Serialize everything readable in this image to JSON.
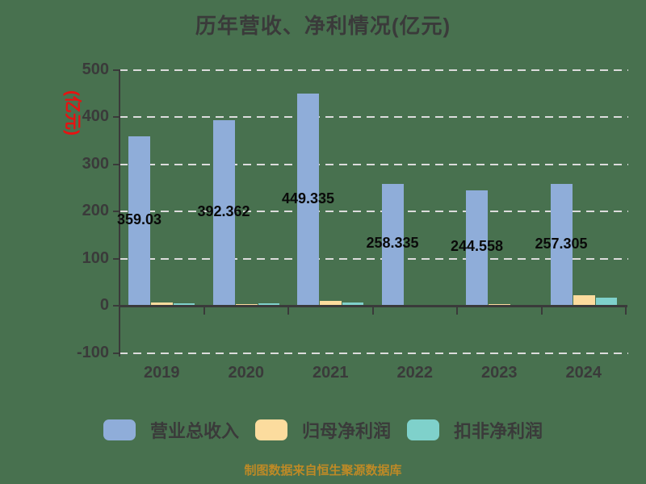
{
  "title": "历年营收、净利情况(亿元)",
  "y_axis_title": "(亿元)",
  "footer": "制图数据来自恒生聚源数据库",
  "colors": {
    "background": "#48714F",
    "axis": "#3A3A3A",
    "gridline": "#DCDCDC",
    "tick_text": "#3A3A3A",
    "value_label_text": "#0A0A0A",
    "y_title_red": "#E81111",
    "footer_gold": "#BE8A26",
    "bar_revenue": "#8FADD9",
    "bar_net_profit": "#FCDC9E",
    "bar_non_gaap_profit": "#7FD1CB"
  },
  "chart_data": {
    "type": "bar",
    "title": "历年营收、净利情况(亿元)",
    "ylabel": "(亿元)",
    "categories": [
      "2019",
      "2020",
      "2021",
      "2022",
      "2023",
      "2024"
    ],
    "series": [
      {
        "name": "营业总收入",
        "color": "#8FADD9",
        "values": [
          359.03,
          392.362,
          449.335,
          258.335,
          244.558,
          257.305
        ],
        "labels_shown": true
      },
      {
        "name": "归母净利润",
        "color": "#FCDC9E",
        "estimated": true,
        "values": [
          7,
          3,
          11,
          2,
          3,
          22
        ],
        "labels_shown": false
      },
      {
        "name": "扣非净利润",
        "color": "#7FD1CB",
        "estimated": true,
        "values": [
          5,
          4.5,
          6,
          2,
          2.5,
          16.5
        ],
        "labels_shown": false
      }
    ],
    "value_labels": [
      "359.03",
      "392.362",
      "449.335",
      "258.335",
      "244.558",
      "257.305"
    ],
    "y_ticks": [
      500,
      400,
      300,
      200,
      100,
      0,
      -100
    ],
    "ylim": [
      -100,
      500
    ],
    "grid": "dashed horizontal",
    "legend_position": "bottom",
    "source_note": "制图数据来自恒生聚源数据库"
  }
}
